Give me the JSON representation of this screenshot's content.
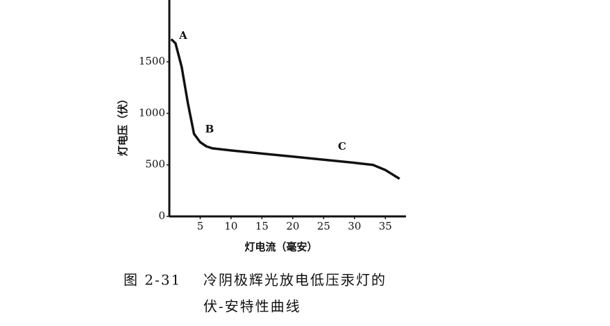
{
  "chart_data": {
    "type": "line",
    "xlabel": "灯电流（毫安）",
    "ylabel": "灯电压（伏）",
    "x": [
      0.3,
      1,
      2,
      3,
      4,
      5,
      6,
      7,
      10,
      15,
      20,
      25,
      30,
      33,
      35,
      37.3
    ],
    "series": [
      {
        "color": "#111111",
        "values": [
          1720,
          1680,
          1450,
          1100,
          800,
          720,
          680,
          660,
          640,
          610,
          580,
          550,
          520,
          500,
          450,
          365
        ]
      }
    ],
    "xlim": [
      0,
      38
    ],
    "ylim": [
      0,
      2100
    ],
    "xticks": [
      5,
      10,
      15,
      20,
      25,
      30,
      35
    ],
    "yticks": [
      0,
      500,
      1000,
      1500
    ],
    "annotations": [
      "A",
      "B",
      "C"
    ],
    "figure_label": "图 2-31",
    "caption": [
      "冷阴极辉光放电低压汞灯的",
      "伏-安特性曲线"
    ]
  }
}
